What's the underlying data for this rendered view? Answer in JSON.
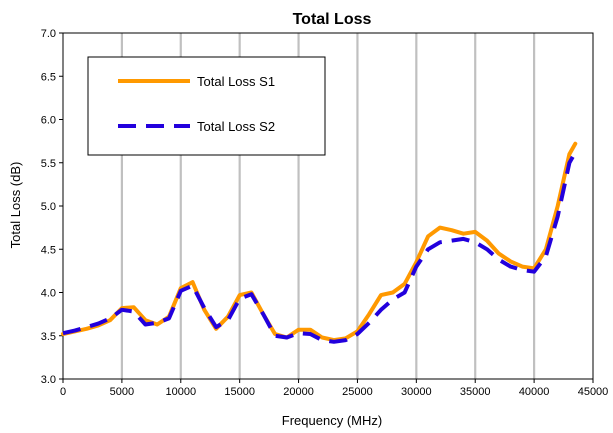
{
  "chart_data": {
    "type": "line",
    "title": "Total Loss",
    "xlabel": "Frequency (MHz)",
    "ylabel": "Total Loss (dB)",
    "xlim": [
      0,
      45000
    ],
    "ylim": [
      3.0,
      7.0
    ],
    "x_ticks": [
      0,
      5000,
      10000,
      15000,
      20000,
      25000,
      30000,
      35000,
      40000,
      45000
    ],
    "y_ticks": [
      "3.0",
      "3.5",
      "4.0",
      "4.5",
      "5.0",
      "5.5",
      "6.0",
      "6.5",
      "7.0"
    ],
    "grid": "vertical",
    "legend_position": "top-left",
    "series": [
      {
        "name": "Total Loss S1",
        "color": "#FF9900",
        "style": "solid",
        "x": [
          0,
          1000,
          2000,
          3000,
          4000,
          5000,
          6000,
          7000,
          8000,
          9000,
          10000,
          11000,
          12000,
          13000,
          14000,
          15000,
          16000,
          17000,
          18000,
          19000,
          20000,
          21000,
          22000,
          23000,
          24000,
          25000,
          26000,
          27000,
          28000,
          29000,
          30000,
          31000,
          32000,
          33000,
          34000,
          35000,
          36000,
          37000,
          38000,
          39000,
          40000,
          41000,
          42000,
          43000,
          43500
        ],
        "values": [
          3.52,
          3.55,
          3.58,
          3.62,
          3.68,
          3.82,
          3.83,
          3.68,
          3.63,
          3.72,
          4.05,
          4.12,
          3.8,
          3.58,
          3.72,
          3.97,
          4.0,
          3.75,
          3.52,
          3.48,
          3.57,
          3.57,
          3.48,
          3.45,
          3.47,
          3.55,
          3.75,
          3.97,
          4.0,
          4.1,
          4.35,
          4.65,
          4.75,
          4.72,
          4.68,
          4.7,
          4.6,
          4.45,
          4.36,
          4.3,
          4.28,
          4.5,
          5.0,
          5.6,
          5.72
        ]
      },
      {
        "name": "Total Loss S2",
        "color": "#2200DD",
        "style": "dashed",
        "x": [
          0,
          1000,
          2000,
          3000,
          4000,
          5000,
          6000,
          7000,
          8000,
          9000,
          10000,
          11000,
          12000,
          13000,
          14000,
          15000,
          16000,
          17000,
          18000,
          19000,
          20000,
          21000,
          22000,
          23000,
          24000,
          25000,
          26000,
          27000,
          28000,
          29000,
          30000,
          31000,
          32000,
          33000,
          34000,
          35000,
          36000,
          37000,
          38000,
          39000,
          40000,
          41000,
          42000,
          43000,
          43500
        ],
        "values": [
          3.53,
          3.56,
          3.6,
          3.64,
          3.7,
          3.8,
          3.78,
          3.63,
          3.65,
          3.7,
          4.02,
          4.08,
          3.82,
          3.6,
          3.68,
          3.93,
          3.98,
          3.75,
          3.5,
          3.48,
          3.53,
          3.52,
          3.45,
          3.43,
          3.45,
          3.52,
          3.65,
          3.8,
          3.92,
          4.0,
          4.3,
          4.5,
          4.58,
          4.6,
          4.62,
          4.58,
          4.5,
          4.38,
          4.3,
          4.26,
          4.24,
          4.42,
          4.88,
          5.5,
          5.62
        ]
      }
    ]
  }
}
